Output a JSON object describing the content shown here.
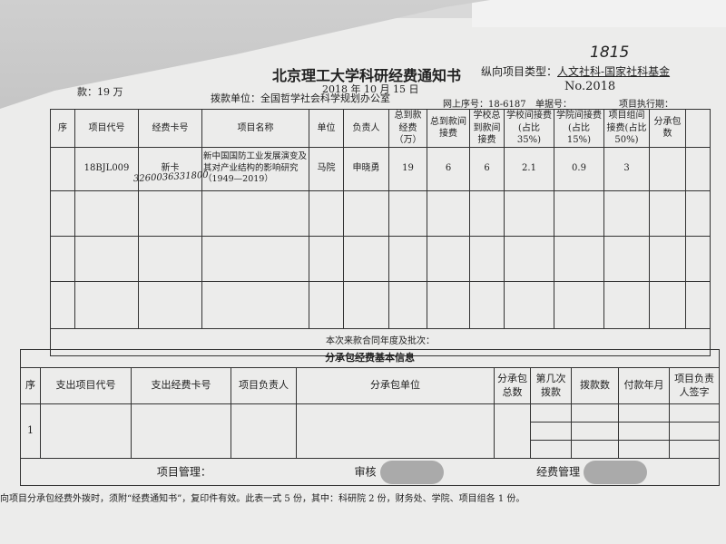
{
  "header": {
    "title": "北京理工大学科研经费通知书",
    "date": "2018 年 10 月 15 日",
    "handwritten_note": "1815",
    "project_type_label": "纵向项目类型：",
    "project_type_value": "人文社科-国家社科基金",
    "number": "No.2018",
    "total_amount": "款：19 万",
    "payer": "拨款单位：全国哲学社会科学规划办公室",
    "online_serial": "网上序号：18-6187",
    "bill_no": "单据号：",
    "period": "项目执行期："
  },
  "main_table": {
    "headers": [
      "序",
      "项目代号",
      "经费卡号",
      "项目名称",
      "单位",
      "负责人",
      "总到款经费（万）",
      "总到款间接费",
      "学校总到款间接费",
      "学校间接费(占比 35%)",
      "学院间接费(占比 15%)",
      "项目组间接费(占比 50%)",
      "分承包数"
    ],
    "row": {
      "seq": "",
      "code": "18BJL009",
      "card": "新卡",
      "card_handwritten": "3260036331800",
      "name": "新中国国防工业发展演变及其对产业结构的影响研究（1949—2019）",
      "unit": "马院",
      "leader": "申晓勇",
      "total": "19",
      "indirect_total": "6",
      "school_total": "6",
      "school": "2.1",
      "college": "0.9",
      "group": "3",
      "sub_count": ""
    },
    "contract_label": "本次来款合同年度及批次："
  },
  "sub_table": {
    "section_title": "分承包经费基本信息",
    "headers": [
      "序",
      "支出项目代号",
      "支出经费卡号",
      "项目负责人",
      "分承包单位",
      "分承包总数",
      "第几次拨款",
      "拨款数",
      "付款年月",
      "项目负责人签字"
    ],
    "row_seq": "1"
  },
  "footer": {
    "project_mgmt": "项目管理：",
    "review": "审核",
    "fund_mgmt": "经费管理"
  },
  "note": "向项目分承包经费外拨时，须附“经费通知书”，复印件有效。此表一式 5 份，其中：科研院 2 份，财务处、学院、项目组各 1 份。"
}
